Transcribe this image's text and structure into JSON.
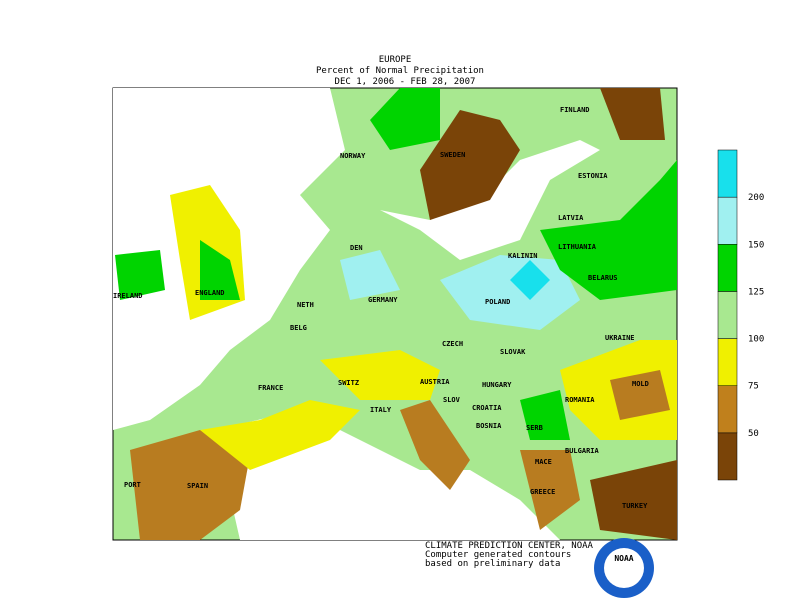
{
  "header": {
    "lines": [
      "EUROPE",
      "Percent of Normal Precipitation",
      "DEC  1, 2006 - FEB 28, 2007"
    ]
  },
  "map": {
    "labels": [
      "NORWAY",
      "SWEDEN",
      "FINLAND",
      "ESTONIA",
      "LATVIA",
      "LITHUANIA",
      "KALININ",
      "BELARUS",
      "DEN",
      "IRELAND",
      "ENGLAND",
      "NETH",
      "GERMANY",
      "POLAND",
      "BELG",
      "CZECH",
      "SLOVAK",
      "UKRAINE",
      "FRANCE",
      "SWITZ",
      "AUSTRIA",
      "HUNGARY",
      "MOLD",
      "ROMANIA",
      "SLOV",
      "CROATIA",
      "BOSNIA",
      "SERB",
      "ITALY",
      "BULGARIA",
      "MACE",
      "PORT",
      "SPAIN",
      "GREECE",
      "TURKEY"
    ]
  },
  "legend": {
    "colors": [
      "#7a4408",
      "#c0801c",
      "#f0f000",
      "#a8e890",
      "#00d400",
      "#a0f0f0",
      "#18e0ec"
    ],
    "ticks": [
      50,
      75,
      100,
      125,
      150,
      200
    ]
  },
  "footer": {
    "lines": [
      "CLIMATE PREDICTION CENTER, NOAA",
      "Computer generated contours",
      "based on preliminary data"
    ],
    "logo": "NOAA"
  }
}
